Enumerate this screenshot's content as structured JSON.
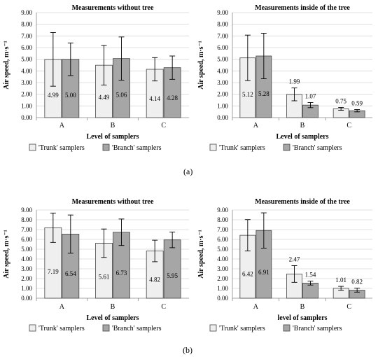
{
  "panel_labels": {
    "a": "(a)",
    "b": "(b)"
  },
  "colors": {
    "trunk": "#efefef",
    "branch": "#a6a6a6",
    "stroke": "#444444",
    "grid": "#d9d9d9"
  },
  "chart_data": [
    {
      "type": "bar",
      "title": "Measurements without tree",
      "xlabel": "Level of samplers",
      "ylabel": "Air speed, m·s⁻¹",
      "categories": [
        "A",
        "B",
        "C"
      ],
      "ylim": [
        0,
        9
      ],
      "yticks": [
        "0.00",
        "1.00",
        "2.00",
        "3.00",
        "4.00",
        "5.00",
        "6.00",
        "7.00",
        "8.00",
        "9.00"
      ],
      "series": [
        {
          "name": "'Trunk' samplers",
          "values": [
            4.99,
            4.49,
            4.14
          ],
          "labels": [
            "4.99",
            "4.49",
            "4.14"
          ],
          "errors": [
            2.3,
            1.7,
            1.0
          ]
        },
        {
          "name": "'Branch' samplers",
          "values": [
            5.0,
            5.06,
            4.28
          ],
          "labels": [
            "5.00",
            "5.06",
            "4.28"
          ],
          "errors": [
            1.4,
            1.85,
            1.0
          ]
        }
      ],
      "label_position": "inside",
      "grid": true,
      "legend": "bottom"
    },
    {
      "type": "bar",
      "title": "Measurements inside of the tree",
      "xlabel": "Level of samplers",
      "ylabel": "Air speed, m·s⁻¹",
      "categories": [
        "A",
        "B",
        "C"
      ],
      "ylim": [
        0,
        9
      ],
      "yticks": [
        "0.00",
        "1.00",
        "2.00",
        "3.00",
        "4.00",
        "5.00",
        "6.00",
        "7.00",
        "8.00",
        "9.00"
      ],
      "series": [
        {
          "name": "'Trunk' samplers",
          "values": [
            5.12,
            1.99,
            0.75
          ],
          "labels": [
            "5.12",
            "1.99",
            "0.75"
          ],
          "errors": [
            1.95,
            0.55,
            0.12
          ]
        },
        {
          "name": "'Branch' samplers",
          "values": [
            5.28,
            1.07,
            0.59
          ],
          "labels": [
            "5.28",
            "1.07",
            "0.59"
          ],
          "errors": [
            1.95,
            0.22,
            0.1
          ]
        }
      ],
      "label_position": "mixed",
      "grid": true,
      "legend": "bottom"
    },
    {
      "type": "bar",
      "title": "Measurements without tree",
      "xlabel": "Level of samplers",
      "ylabel": "Air speed, m·s⁻¹",
      "categories": [
        "A",
        "B",
        "C"
      ],
      "ylim": [
        0,
        9
      ],
      "yticks": [
        "0.00",
        "1.00",
        "2.00",
        "3.00",
        "4.00",
        "5.00",
        "6.00",
        "7.00",
        "8.00",
        "9.00"
      ],
      "series": [
        {
          "name": "'Trunk' samplers",
          "values": [
            7.19,
            5.61,
            4.82
          ],
          "labels": [
            "7.19",
            "5.61",
            "4.82"
          ],
          "errors": [
            1.5,
            1.45,
            1.1
          ]
        },
        {
          "name": "'Branch' samplers",
          "values": [
            6.54,
            6.73,
            5.95
          ],
          "labels": [
            "6.54",
            "6.73",
            "5.95"
          ],
          "errors": [
            1.95,
            1.35,
            0.8
          ]
        }
      ],
      "label_position": "inside",
      "grid": true,
      "legend": "bottom"
    },
    {
      "type": "bar",
      "title": "Measurements inside of the tree",
      "xlabel": "level of samplers",
      "ylabel": "Air speed, m·s⁻¹",
      "categories": [
        "A",
        "B",
        "C"
      ],
      "ylim": [
        0,
        9
      ],
      "yticks": [
        "0.00",
        "1.00",
        "2.00",
        "3.00",
        "4.00",
        "5.00",
        "6.00",
        "7.00",
        "8.00",
        "9.00"
      ],
      "series": [
        {
          "name": "'Trunk' samplers",
          "values": [
            6.42,
            2.47,
            1.01
          ],
          "labels": [
            "6.42",
            "2.47",
            "1.01"
          ],
          "errors": [
            1.6,
            0.85,
            0.2
          ]
        },
        {
          "name": "'Branch' samplers",
          "values": [
            6.91,
            1.54,
            0.82
          ],
          "labels": [
            "6.91",
            "1.54",
            "0.82"
          ],
          "errors": [
            1.8,
            0.2,
            0.2
          ]
        }
      ],
      "label_position": "mixed",
      "grid": true,
      "legend": "bottom"
    }
  ]
}
